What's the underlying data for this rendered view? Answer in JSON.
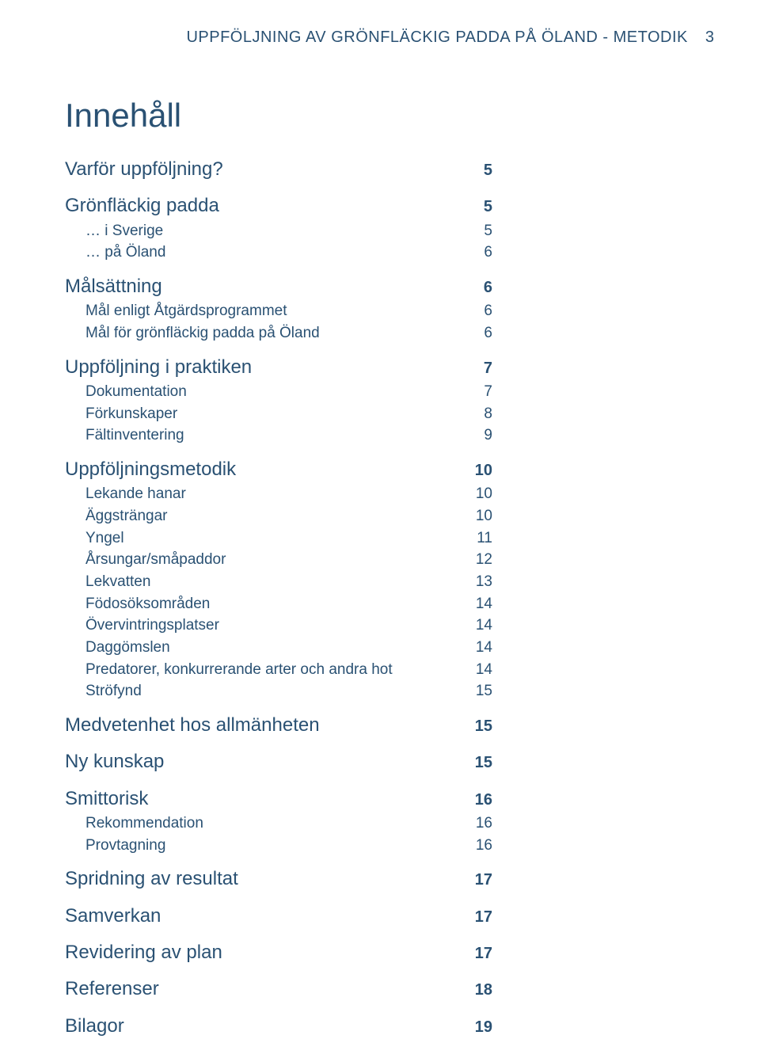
{
  "colors": {
    "text": "#2a5173",
    "background": "#ffffff"
  },
  "typography": {
    "header_fontsize": 20,
    "toc_title_fontsize": 42,
    "section_fontsize": 24,
    "section_num_fontsize": 20,
    "sub_fontsize": 19,
    "font_family": "Myriad Pro / Segoe UI / Helvetica"
  },
  "header": {
    "title": "UPPFÖLJNING AV GRÖNFLÄCKIG PADDA PÅ ÖLAND - METODIK",
    "page_number": "3"
  },
  "toc": {
    "title": "Innehåll",
    "sections": [
      {
        "label": "Varför uppföljning?",
        "page": "5",
        "items": []
      },
      {
        "label": "Grönfläckig padda",
        "page": "5",
        "items": [
          {
            "label": "… i Sverige",
            "page": "5"
          },
          {
            "label": "… på Öland",
            "page": "6"
          }
        ]
      },
      {
        "label": "Målsättning",
        "page": "6",
        "items": [
          {
            "label": "Mål enligt Åtgärdsprogrammet",
            "page": "6"
          },
          {
            "label": "Mål för grönfläckig padda på Öland",
            "page": "6"
          }
        ]
      },
      {
        "label": "Uppföljning i praktiken",
        "page": "7",
        "items": [
          {
            "label": "Dokumentation",
            "page": "7"
          },
          {
            "label": "Förkunskaper",
            "page": "8"
          },
          {
            "label": "Fältinventering",
            "page": "9"
          }
        ]
      },
      {
        "label": "Uppföljningsmetodik",
        "page": "10",
        "items": [
          {
            "label": "Lekande hanar",
            "page": "10"
          },
          {
            "label": "Äggsträngar",
            "page": "10"
          },
          {
            "label": "Yngel",
            "page": "11"
          },
          {
            "label": "Årsungar/småpaddor",
            "page": "12"
          },
          {
            "label": "Lekvatten",
            "page": "13"
          },
          {
            "label": "Födosöksområden",
            "page": "14"
          },
          {
            "label": "Övervintringsplatser",
            "page": "14"
          },
          {
            "label": "Daggömslen",
            "page": "14"
          },
          {
            "label": "Predatorer, konkurrerande arter och andra hot",
            "page": "14"
          },
          {
            "label": "Ströfynd",
            "page": "15"
          }
        ]
      },
      {
        "label": "Medvetenhet hos allmänheten",
        "page": "15",
        "items": []
      },
      {
        "label": "Ny kunskap",
        "page": "15",
        "items": []
      },
      {
        "label": "Smittorisk",
        "page": "16",
        "items": [
          {
            "label": "Rekommendation",
            "page": "16"
          },
          {
            "label": "Provtagning",
            "page": "16"
          }
        ]
      },
      {
        "label": "Spridning av resultat",
        "page": "17",
        "items": []
      },
      {
        "label": "Samverkan",
        "page": "17",
        "items": []
      },
      {
        "label": "Revidering av plan",
        "page": "17",
        "items": []
      },
      {
        "label": "Referenser",
        "page": "18",
        "items": []
      },
      {
        "label": "Bilagor",
        "page": "19",
        "items": []
      }
    ]
  }
}
